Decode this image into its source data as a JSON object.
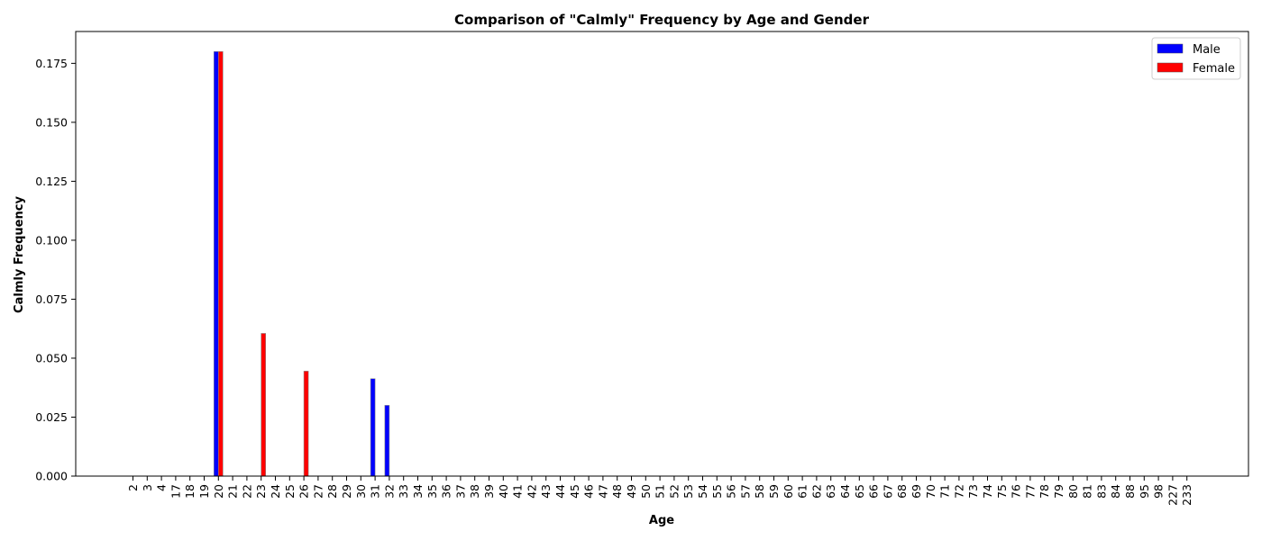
{
  "chart_data": {
    "type": "bar",
    "title": "Comparison of \"Calmly\" Frequency by Age and Gender",
    "xlabel": "Age",
    "ylabel": "Calmly Frequency",
    "ylim": [
      0,
      0.1885
    ],
    "yticks": [
      "0.000",
      "0.025",
      "0.050",
      "0.075",
      "0.100",
      "0.125",
      "0.150",
      "0.175"
    ],
    "ytick_values": [
      0,
      0.025,
      0.05,
      0.075,
      0.1,
      0.125,
      0.15,
      0.175
    ],
    "categories": [
      "2",
      "3",
      "4",
      "17",
      "18",
      "19",
      "20",
      "21",
      "22",
      "23",
      "24",
      "25",
      "26",
      "27",
      "28",
      "29",
      "30",
      "31",
      "32",
      "33",
      "34",
      "35",
      "36",
      "37",
      "38",
      "39",
      "40",
      "41",
      "42",
      "43",
      "44",
      "45",
      "46",
      "47",
      "48",
      "49",
      "50",
      "51",
      "52",
      "53",
      "54",
      "55",
      "56",
      "57",
      "58",
      "59",
      "60",
      "61",
      "62",
      "63",
      "64",
      "65",
      "66",
      "67",
      "68",
      "69",
      "70",
      "71",
      "72",
      "73",
      "74",
      "75",
      "76",
      "77",
      "78",
      "79",
      "80",
      "81",
      "83",
      "84",
      "88",
      "95",
      "98",
      "227",
      "233"
    ],
    "series": [
      {
        "name": "Male",
        "color": "#0000ff",
        "values": [
          0,
          0,
          0,
          0,
          0,
          0,
          0.18,
          0,
          0,
          0,
          0,
          0,
          0,
          0,
          0,
          0,
          0,
          0.0413,
          0.03,
          0,
          0,
          0,
          0,
          0,
          0,
          0,
          0,
          0,
          0,
          0,
          0,
          0,
          0,
          0,
          0,
          0,
          0,
          0,
          0,
          0,
          0,
          0,
          0,
          0,
          0,
          0,
          0,
          0,
          0,
          0,
          0,
          0,
          0,
          0,
          0,
          0,
          0,
          0,
          0,
          0,
          0,
          0,
          0,
          0,
          0,
          0,
          0,
          0,
          0,
          0,
          0,
          0,
          0,
          0,
          0
        ]
      },
      {
        "name": "Female",
        "color": "#ff0000",
        "values": [
          0,
          0,
          0,
          0,
          0,
          0,
          0.18,
          0,
          0,
          0.0605,
          0,
          0,
          0.0445,
          0,
          0,
          0,
          0,
          0,
          0,
          0,
          0,
          0,
          0,
          0,
          0,
          0,
          0,
          0,
          0,
          0,
          0,
          0,
          0,
          0,
          0,
          0,
          0,
          0,
          0,
          0,
          0,
          0,
          0,
          0,
          0,
          0,
          0,
          0,
          0,
          0,
          0,
          0,
          0,
          0,
          0,
          0,
          0,
          0,
          0,
          0,
          0,
          0,
          0,
          0,
          0,
          0,
          0,
          0,
          0,
          0,
          0,
          0,
          0,
          0,
          0
        ]
      }
    ],
    "legend_placement": "top-right",
    "grid": false
  }
}
